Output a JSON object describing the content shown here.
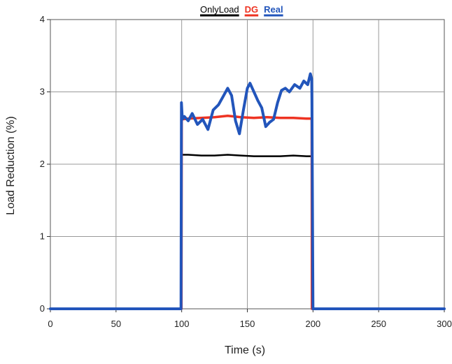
{
  "chart_data": {
    "type": "line",
    "title": "",
    "xlabel": "Time (s)",
    "ylabel": "Load Reduction (%)",
    "xlim": [
      0,
      300
    ],
    "ylim": [
      0,
      4
    ],
    "x_ticks": [
      0,
      50,
      100,
      150,
      200,
      250,
      300
    ],
    "y_ticks": [
      0,
      1,
      2,
      3,
      4
    ],
    "x_tick_labels": [
      "0",
      "50",
      "100",
      "150",
      "200",
      "250",
      "300"
    ],
    "y_tick_labels": [
      "0",
      "1",
      "2",
      "3",
      "4"
    ],
    "grid": true,
    "legend": "top",
    "series": [
      {
        "name": "OnlyLoad",
        "color": "#000000",
        "x": [
          0,
          99.8,
          100,
          105,
          115,
          125,
          135,
          145,
          155,
          165,
          175,
          185,
          195,
          199,
          199.2,
          300
        ],
        "y": [
          0,
          0,
          2.13,
          2.13,
          2.12,
          2.12,
          2.13,
          2.12,
          2.11,
          2.11,
          2.11,
          2.12,
          2.11,
          2.11,
          0,
          0
        ]
      },
      {
        "name": "DG",
        "color": "#ee3322",
        "x": [
          0,
          99.8,
          100,
          105,
          115,
          125,
          135,
          145,
          155,
          165,
          175,
          185,
          195,
          199,
          199.2,
          300
        ],
        "y": [
          0,
          0,
          2.62,
          2.63,
          2.64,
          2.65,
          2.67,
          2.65,
          2.64,
          2.65,
          2.64,
          2.64,
          2.63,
          2.63,
          0,
          0
        ]
      },
      {
        "name": "Real",
        "color": "#2255bb",
        "x": [
          0,
          99.5,
          99.8,
          100.5,
          102,
          105,
          108,
          112,
          116,
          120,
          124,
          128,
          132,
          135,
          138,
          141,
          144,
          147,
          150,
          152,
          155,
          158,
          161,
          164,
          167,
          170,
          173,
          176,
          179,
          182,
          186,
          190,
          193,
          196,
          198,
          199,
          199.2,
          200,
          300
        ],
        "y": [
          0,
          0,
          2.85,
          2.62,
          2.66,
          2.6,
          2.7,
          2.55,
          2.62,
          2.48,
          2.75,
          2.82,
          2.95,
          3.05,
          2.95,
          2.6,
          2.42,
          2.75,
          3.05,
          3.12,
          3.0,
          2.88,
          2.78,
          2.52,
          2.58,
          2.62,
          2.85,
          3.02,
          3.05,
          3.0,
          3.1,
          3.05,
          3.15,
          3.1,
          3.25,
          3.18,
          2.9,
          0,
          0
        ]
      }
    ]
  }
}
